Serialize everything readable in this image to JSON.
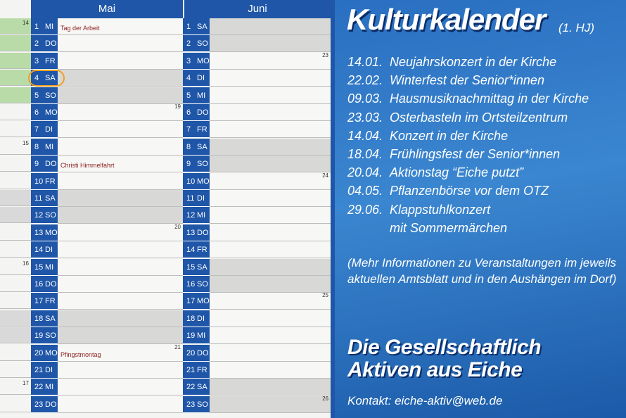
{
  "calendar": {
    "months": [
      "Mai",
      "Juni"
    ],
    "mai": [
      {
        "n": "1",
        "wd": "MI",
        "event": "Tag der Arbeit",
        "kw": "14",
        "we": false
      },
      {
        "n": "2",
        "wd": "DO",
        "event": "",
        "kw": "",
        "we": false
      },
      {
        "n": "3",
        "wd": "FR",
        "event": "",
        "kw": "",
        "we": false
      },
      {
        "n": "4",
        "wd": "SA",
        "event": "",
        "kw": "",
        "we": true
      },
      {
        "n": "5",
        "wd": "SO",
        "event": "",
        "kw": "",
        "we": true
      },
      {
        "n": "6",
        "wd": "MO",
        "event": "",
        "kw": "19",
        "we": false
      },
      {
        "n": "7",
        "wd": "DI",
        "event": "",
        "kw": "",
        "we": false
      },
      {
        "n": "8",
        "wd": "MI",
        "event": "",
        "kw": "15",
        "we": false
      },
      {
        "n": "9",
        "wd": "DO",
        "event": "Christi Himmelfahrt",
        "kw": "",
        "we": false
      },
      {
        "n": "10",
        "wd": "FR",
        "event": "",
        "kw": "",
        "we": false
      },
      {
        "n": "11",
        "wd": "SA",
        "event": "",
        "kw": "",
        "we": true
      },
      {
        "n": "12",
        "wd": "SO",
        "event": "",
        "kw": "",
        "we": true
      },
      {
        "n": "13",
        "wd": "MO",
        "event": "",
        "kw": "20",
        "we": false
      },
      {
        "n": "14",
        "wd": "DI",
        "event": "",
        "kw": "",
        "we": false
      },
      {
        "n": "15",
        "wd": "MI",
        "event": "",
        "kw": "16",
        "we": false
      },
      {
        "n": "16",
        "wd": "DO",
        "event": "",
        "kw": "",
        "we": false
      },
      {
        "n": "17",
        "wd": "FR",
        "event": "",
        "kw": "",
        "we": false
      },
      {
        "n": "18",
        "wd": "SA",
        "event": "",
        "kw": "",
        "we": true
      },
      {
        "n": "19",
        "wd": "SO",
        "event": "",
        "kw": "",
        "we": true
      },
      {
        "n": "20",
        "wd": "MO",
        "event": "Pfingstmontag",
        "kw": "21",
        "we": false
      },
      {
        "n": "21",
        "wd": "DI",
        "event": "",
        "kw": "",
        "we": false
      },
      {
        "n": "22",
        "wd": "MI",
        "event": "",
        "kw": "17",
        "we": false
      },
      {
        "n": "23",
        "wd": "DO",
        "event": "",
        "kw": "",
        "we": false
      }
    ],
    "juni": [
      {
        "n": "1",
        "wd": "SA",
        "kw": "",
        "we": true
      },
      {
        "n": "2",
        "wd": "SO",
        "kw": "",
        "we": true
      },
      {
        "n": "3",
        "wd": "MO",
        "kw": "23",
        "we": false
      },
      {
        "n": "4",
        "wd": "DI",
        "kw": "",
        "we": false
      },
      {
        "n": "5",
        "wd": "MI",
        "kw": "",
        "we": false
      },
      {
        "n": "6",
        "wd": "DO",
        "kw": "",
        "we": false
      },
      {
        "n": "7",
        "wd": "FR",
        "kw": "",
        "we": false
      },
      {
        "n": "8",
        "wd": "SA",
        "kw": "",
        "we": true
      },
      {
        "n": "9",
        "wd": "SO",
        "kw": "",
        "we": true
      },
      {
        "n": "10",
        "wd": "MO",
        "kw": "24",
        "we": false
      },
      {
        "n": "11",
        "wd": "DI",
        "kw": "",
        "we": false
      },
      {
        "n": "12",
        "wd": "MI",
        "kw": "",
        "we": false
      },
      {
        "n": "13",
        "wd": "DO",
        "kw": "",
        "we": false
      },
      {
        "n": "14",
        "wd": "FR",
        "kw": "",
        "we": false
      },
      {
        "n": "15",
        "wd": "SA",
        "kw": "",
        "we": true
      },
      {
        "n": "16",
        "wd": "SO",
        "kw": "",
        "we": true
      },
      {
        "n": "17",
        "wd": "MO",
        "kw": "25",
        "we": false
      },
      {
        "n": "18",
        "wd": "DI",
        "kw": "",
        "we": false
      },
      {
        "n": "19",
        "wd": "MI",
        "kw": "",
        "we": false
      },
      {
        "n": "20",
        "wd": "DO",
        "kw": "",
        "we": false
      },
      {
        "n": "21",
        "wd": "FR",
        "kw": "",
        "we": false
      },
      {
        "n": "22",
        "wd": "SA",
        "kw": "",
        "we": true
      },
      {
        "n": "23",
        "wd": "SO",
        "kw": "26",
        "we": true
      }
    ]
  },
  "info": {
    "title": "Kulturkalender",
    "title_sub": "(1. HJ)",
    "events": [
      {
        "date": "14.01.",
        "text": "Neujahrskonzert in der Kirche"
      },
      {
        "date": "22.02.",
        "text": "Winterfest der  Senior*innen"
      },
      {
        "date": "09.03.",
        "text": "Hausmusiknachmittag in der Kirche"
      },
      {
        "date": "23.03.",
        "text": "Osterbasteln im Ortsteilzentrum"
      },
      {
        "date": "14.04.",
        "text": "Konzert in der Kirche"
      },
      {
        "date": "18.04.",
        "text": "Frühlingsfest der Senior*innen"
      },
      {
        "date": "20.04.",
        "text": "Aktionstag “Eiche putzt”"
      },
      {
        "date": "04.05.",
        "text": "Pflanzenbörse vor dem OTZ"
      },
      {
        "date": "29.06.",
        "text": "Klappstuhlkonzert"
      }
    ],
    "event_cont": "mit Sommermärchen",
    "note": "(Mehr Informationen zu Veranstaltungen im jeweils aktuellen Amtsblatt und in den Aushängen im Dorf)",
    "org_line1": "Die Gesellschaftlich",
    "org_line2": "Aktiven aus Eiche",
    "contact": "Kontakt: eiche-aktiv@web.de"
  }
}
